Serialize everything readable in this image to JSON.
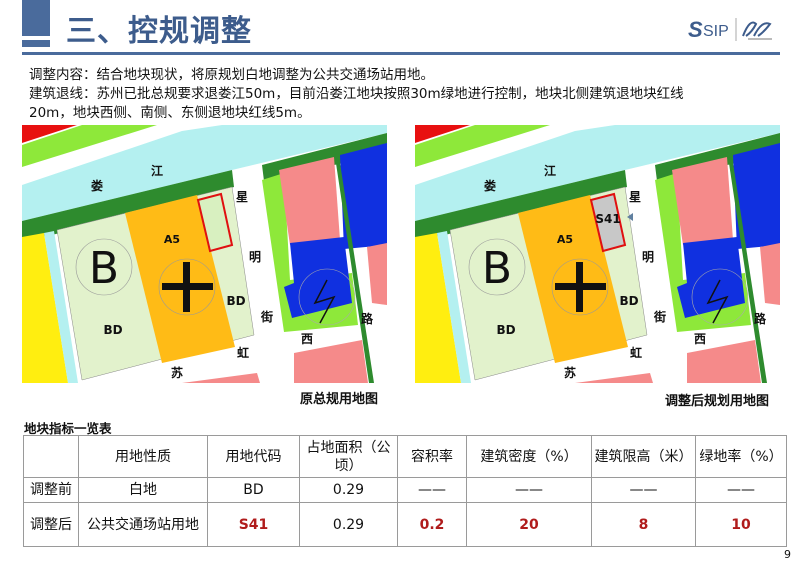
{
  "header": {
    "title": "三、控规调整",
    "logo_text": "SIP"
  },
  "body": {
    "line1": "调整内容：结合地块现状，将原规划白地调整为公共交通场站用地。",
    "line2": "建筑退线：苏州已批总规要求退娄江50m，目前沿娄江地块按照30m绿地进行控制，地块北侧建筑退地块红线",
    "line3": "20m，地块西侧、南侧、东侧退地块红线5m。"
  },
  "maps": [
    {
      "caption": "原总规用地图",
      "highlight_label": "",
      "highlight_fill": "#d8f0c0"
    },
    {
      "caption": "调整后规划用地图",
      "highlight_label": "S41",
      "highlight_fill": "#c8c8c8"
    }
  ],
  "map_labels": {
    "river_1": "娄",
    "river_2": "江",
    "street_1": "星",
    "street_2": "明",
    "street_3": "街",
    "road_1": "西",
    "road_2": "路",
    "road_3": "虹",
    "road_4": "苏",
    "bd_1": "BD",
    "bd_2": "BD",
    "a5": "A5",
    "b": "B"
  },
  "colors": {
    "title": "#3d5c8c",
    "accent_red": "#b01c1c"
  },
  "table": {
    "title": "地块指标一览表",
    "headers": [
      "",
      "用地性质",
      "用地代码",
      "占地面积（公顷）",
      "容积率",
      "建筑密度（%）",
      "建筑限高（米）",
      "绿地率（%）"
    ],
    "rows": [
      [
        "调整前",
        "白地",
        "BD",
        "0.29",
        "——",
        "——",
        "——",
        "——"
      ],
      [
        "调整后",
        "公共交通场站用地",
        "S41",
        "0.29",
        "0.2",
        "20",
        "8",
        "10"
      ]
    ]
  },
  "page_number": "9"
}
